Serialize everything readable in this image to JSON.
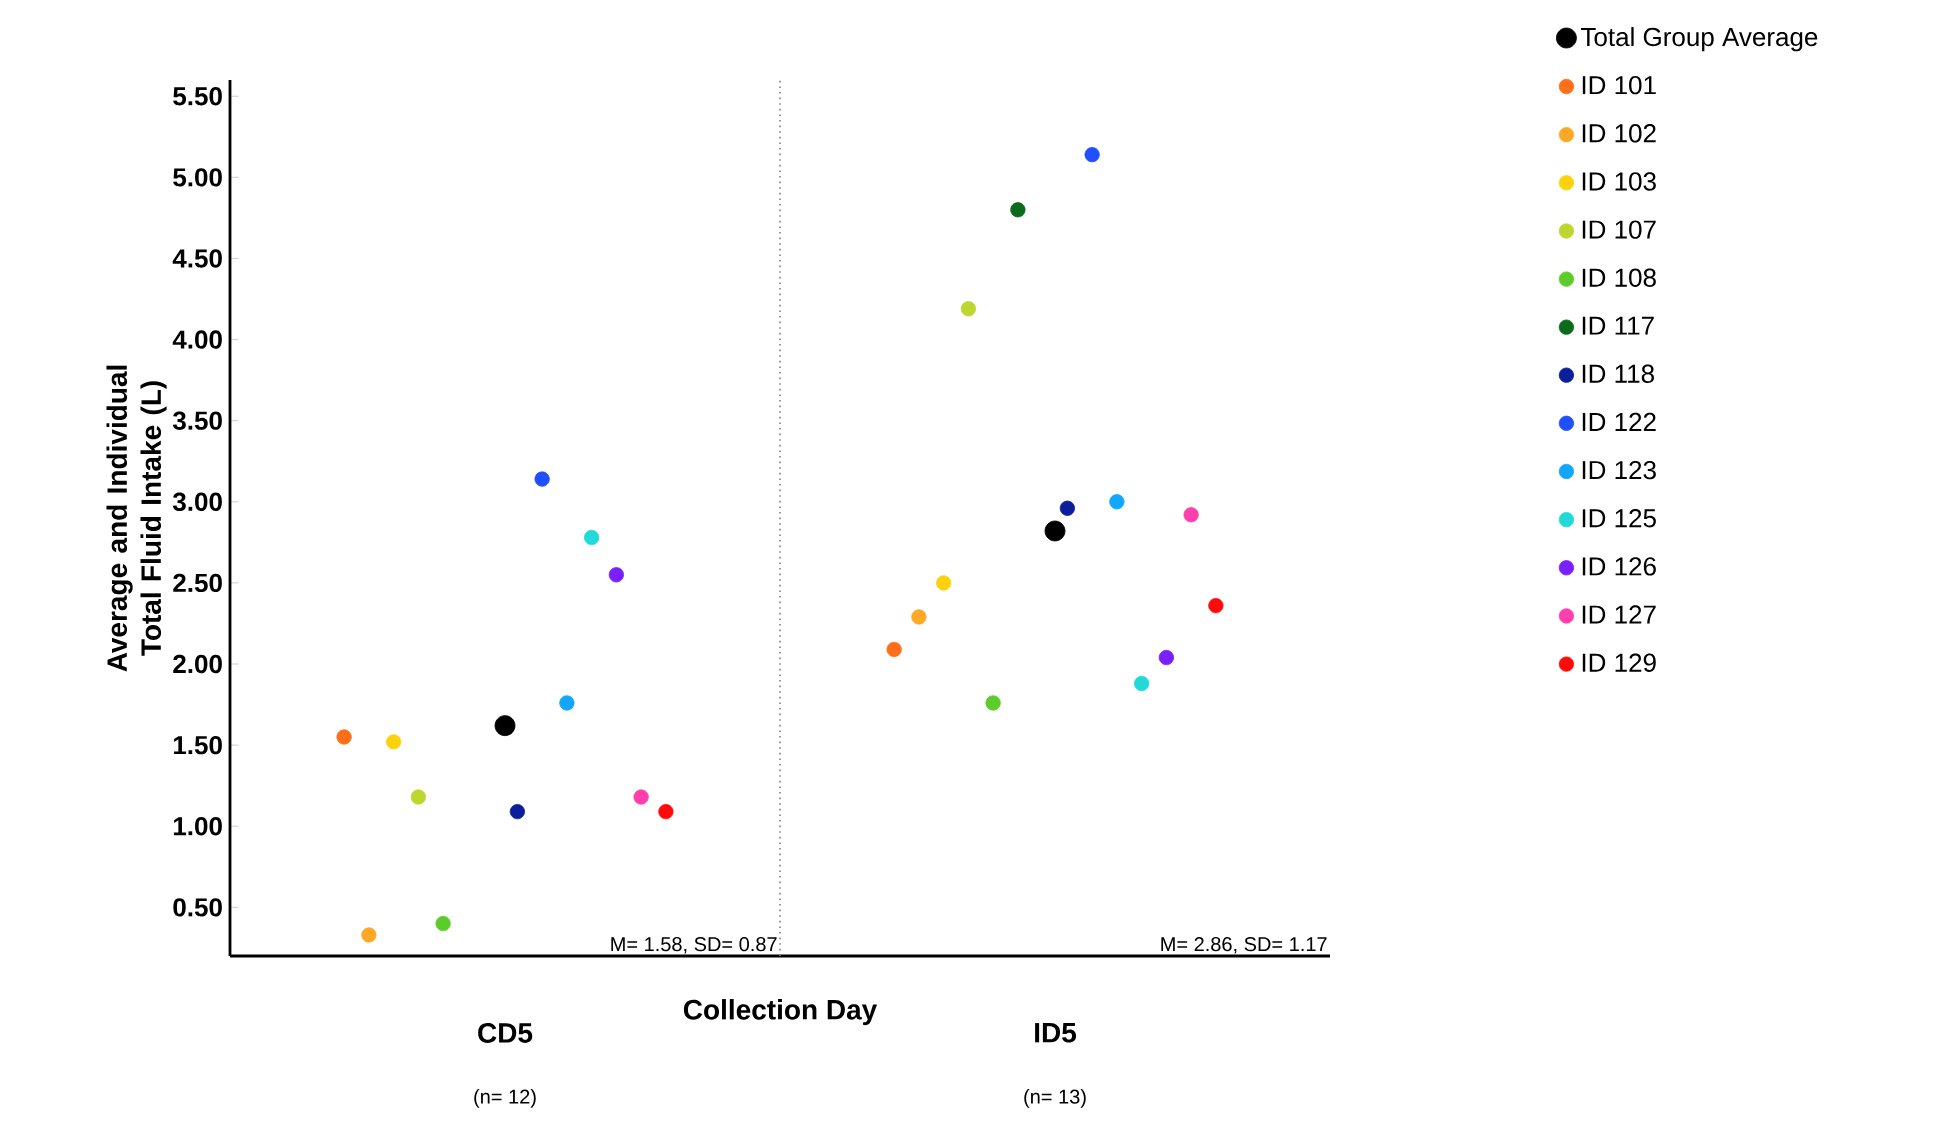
{
  "chart_data": {
    "type": "scatter",
    "xlabel": "Collection Day",
    "ylabel": "Average and Individual Total Fluid Intake (L)",
    "categories": [
      "CD5",
      "ID5"
    ],
    "annotations": [
      "M= 1.58, SD= 0.87",
      "M= 2.86, SD= 1.17",
      "(n= 12)",
      "(n= 13)"
    ],
    "ylim": [
      0.2,
      5.6
    ],
    "yticks": [
      {
        "value": 0.5,
        "label": "0.50"
      },
      {
        "value": 1,
        "label": "1.00"
      },
      {
        "value": 1.5,
        "label": "1.50"
      },
      {
        "value": 2,
        "label": "2.00"
      },
      {
        "value": 2.5,
        "label": "2.50"
      },
      {
        "value": 3,
        "label": "3.00"
      },
      {
        "value": 3.5,
        "label": "3.50"
      },
      {
        "value": 4,
        "label": "4.00"
      },
      {
        "value": 4.5,
        "label": "4.50"
      },
      {
        "value": 5,
        "label": "5.00"
      },
      {
        "value": 5.5,
        "label": "5.50"
      }
    ],
    "grid": false,
    "legend": "right",
    "marker": "circle",
    "series": [
      {
        "name": "Total Group Average",
        "color": "#000000",
        "values": [
          1.62,
          2.82
        ]
      },
      {
        "name": "ID 101",
        "color": "#ff6f1a",
        "values": [
          1.55,
          2.09
        ]
      },
      {
        "name": "ID 102",
        "color": "#ffa726",
        "values": [
          0.33,
          2.29
        ]
      },
      {
        "name": "ID 103",
        "color": "#fcd20c",
        "values": [
          1.52,
          2.5
        ]
      },
      {
        "name": "ID 107",
        "color": "#bfd630",
        "values": [
          1.18,
          4.19
        ]
      },
      {
        "name": "ID 108",
        "color": "#5ccc2a",
        "values": [
          0.4,
          1.76
        ]
      },
      {
        "name": "ID 117",
        "color": "#0b6b1a",
        "values": [
          null,
          4.8
        ]
      },
      {
        "name": "ID 118",
        "color": "#0a1f99",
        "values": [
          1.09,
          2.96
        ]
      },
      {
        "name": "ID 122",
        "color": "#1f4fff",
        "values": [
          3.14,
          5.14
        ]
      },
      {
        "name": "ID 123",
        "color": "#12a7ff",
        "values": [
          1.76,
          3.0
        ]
      },
      {
        "name": "ID 125",
        "color": "#22d9d9",
        "values": [
          2.78,
          1.88
        ]
      },
      {
        "name": "ID 126",
        "color": "#7a1fff",
        "values": [
          2.55,
          2.04
        ]
      },
      {
        "name": "ID 127",
        "color": "#ff3fae",
        "values": [
          1.18,
          2.92
        ]
      },
      {
        "name": "ID 129",
        "color": "#ff0a0a",
        "values": [
          1.09,
          2.36
        ]
      }
    ]
  }
}
